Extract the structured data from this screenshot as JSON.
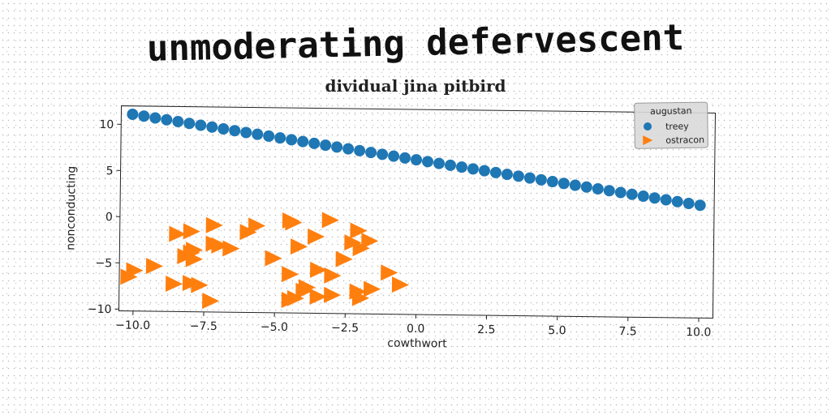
{
  "chart_data": {
    "type": "scatter",
    "title": "unmoderating defervescent",
    "subtitle": "dividual jina pitbird",
    "xlabel": "cowthwort",
    "ylabel": "nonconducting",
    "xlim": [
      -10.5,
      10.5
    ],
    "ylim": [
      -10.2,
      12
    ],
    "x_ticks": [
      -10.0,
      -7.5,
      -5.0,
      -2.5,
      0.0,
      2.5,
      5.0,
      7.5,
      10.0
    ],
    "x_tick_labels": [
      "−10.0",
      "−7.5",
      "−5.0",
      "−2.5",
      "0.0",
      "2.5",
      "5.0",
      "7.5",
      "10.0"
    ],
    "y_ticks": [
      -10,
      -5,
      0,
      5,
      10
    ],
    "y_tick_labels": [
      "−10",
      "−5",
      "0",
      "5",
      "10"
    ],
    "grid": false,
    "legend": {
      "title": "augustan",
      "placement": "top-right"
    },
    "series": [
      {
        "name": "treey",
        "marker": "circle",
        "color": "#1f77b4",
        "line": {
          "x_start": -10.1,
          "x_end": 10.0,
          "y_start": 11.1,
          "y_end": 2.0,
          "count": 51
        }
      },
      {
        "name": "ostracon",
        "marker": "triangle-right",
        "color": "#ff7f0e",
        "points": [
          [
            -8.5,
            -1.8
          ],
          [
            -8.0,
            -1.5
          ],
          [
            -7.2,
            -0.8
          ],
          [
            -6.0,
            -1.5
          ],
          [
            -5.7,
            -0.8
          ],
          [
            -4.5,
            -0.2
          ],
          [
            -4.4,
            -0.4
          ],
          [
            -3.1,
            -0.1
          ],
          [
            -3.6,
            -1.9
          ],
          [
            -2.1,
            -1.2
          ],
          [
            -2.3,
            -2.5
          ],
          [
            -2.0,
            -3.1
          ],
          [
            -1.7,
            -2.3
          ],
          [
            -7.0,
            -3.0
          ],
          [
            -7.2,
            -2.8
          ],
          [
            -6.6,
            -3.3
          ],
          [
            -4.2,
            -3.0
          ],
          [
            -7.9,
            -3.5
          ],
          [
            -8.2,
            -4.2
          ],
          [
            -8.0,
            -3.8
          ],
          [
            -7.9,
            -4.5
          ],
          [
            -5.1,
            -4.3
          ],
          [
            -2.6,
            -4.3
          ],
          [
            -10.0,
            -5.8
          ],
          [
            -9.3,
            -5.3
          ],
          [
            -3.5,
            -5.5
          ],
          [
            -4.5,
            -6.0
          ],
          [
            -3.0,
            -6.1
          ],
          [
            -1.0,
            -5.7
          ],
          [
            -8.6,
            -7.2
          ],
          [
            -8.0,
            -7.1
          ],
          [
            -7.7,
            -7.3
          ],
          [
            -4.0,
            -7.8
          ],
          [
            -3.9,
            -7.4
          ],
          [
            -2.1,
            -7.8
          ],
          [
            -1.6,
            -7.5
          ],
          [
            -0.6,
            -7.0
          ],
          [
            -4.5,
            -8.8
          ],
          [
            -4.3,
            -8.6
          ],
          [
            -3.5,
            -8.4
          ],
          [
            -3.0,
            -8.2
          ],
          [
            -2.0,
            -8.5
          ],
          [
            -7.3,
            -9.0
          ],
          [
            -10.2,
            -6.5
          ]
        ]
      }
    ]
  }
}
